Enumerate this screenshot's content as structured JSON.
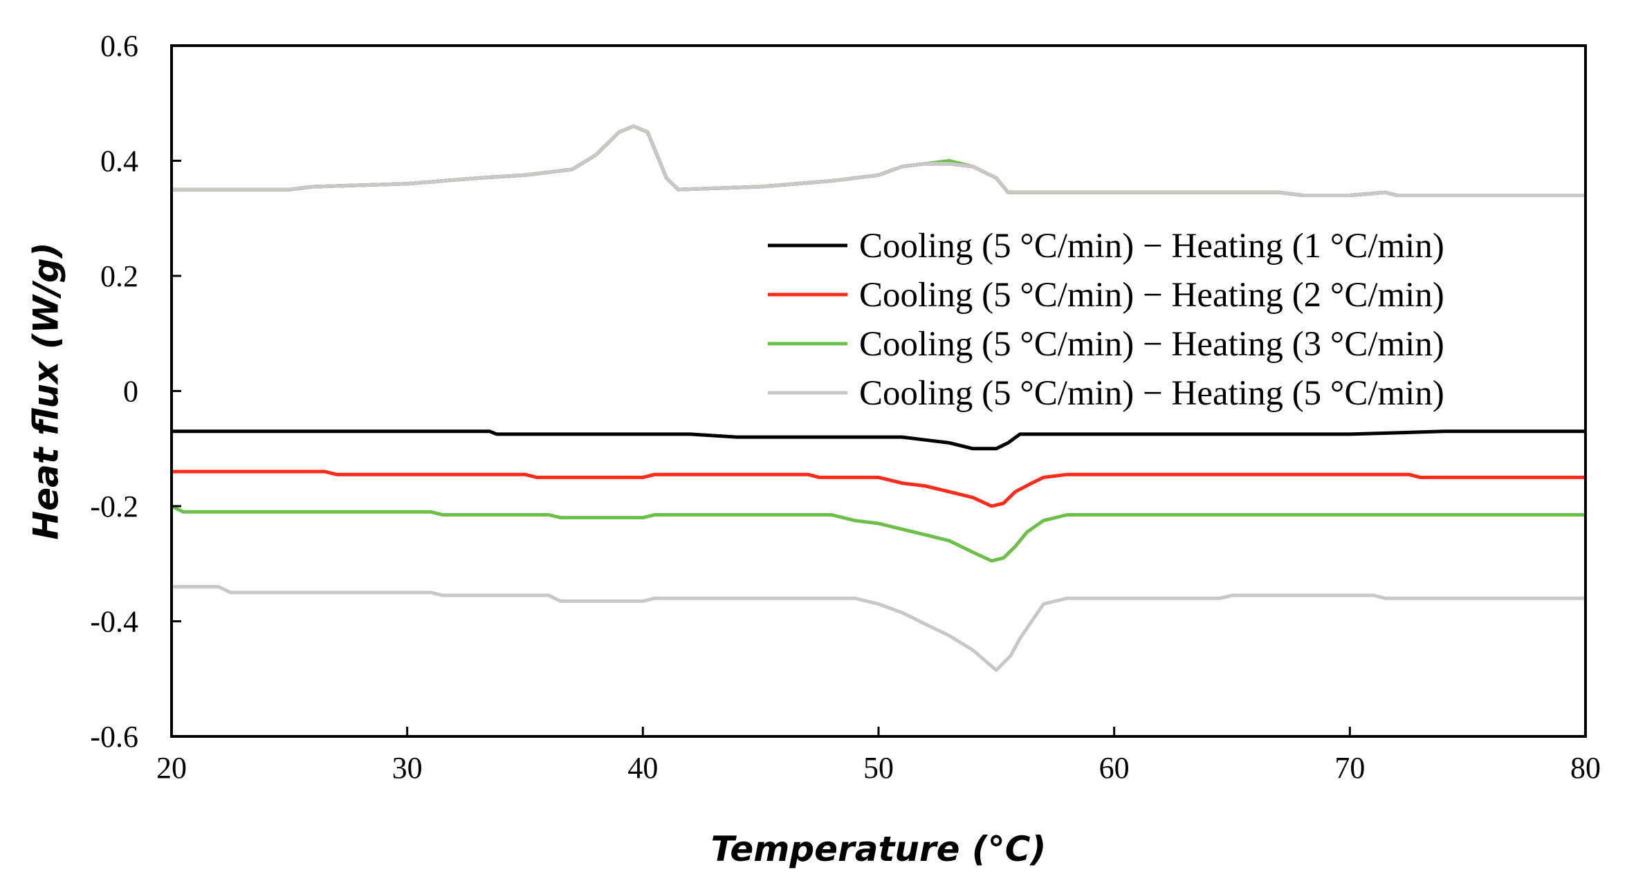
{
  "chart_data": {
    "type": "line",
    "title": "",
    "xlabel": "Temperature (°C)",
    "ylabel": "Heat flux (W/g)",
    "xlim": [
      20,
      80
    ],
    "ylim": [
      -0.6,
      0.6
    ],
    "x_ticks": [
      20,
      30,
      40,
      50,
      60,
      70,
      80
    ],
    "x_tick_labels": [
      "20",
      "30",
      "40",
      "50",
      "60",
      "70",
      "80"
    ],
    "y_ticks": [
      -0.6,
      -0.4,
      -0.2,
      0,
      0.2,
      0.4,
      0.6
    ],
    "y_tick_labels": [
      "-0.6",
      "-0.4",
      "-0.2",
      "0",
      "0.2",
      "0.4",
      "0.6"
    ],
    "grid": false,
    "legend_position": "right",
    "series": [
      {
        "name": "Cooling (5 °C/min) − Heating (1 °C/min)",
        "color": "#000000",
        "cooling": [
          [
            20,
            0.35
          ],
          [
            25,
            0.35
          ],
          [
            26,
            0.355
          ],
          [
            30,
            0.36
          ],
          [
            33,
            0.37
          ],
          [
            35,
            0.375
          ],
          [
            37,
            0.385
          ],
          [
            38,
            0.41
          ],
          [
            39,
            0.45
          ],
          [
            39.6,
            0.46
          ],
          [
            40.2,
            0.45
          ],
          [
            40.6,
            0.41
          ],
          [
            41,
            0.37
          ],
          [
            41.5,
            0.35
          ],
          [
            45,
            0.355
          ],
          [
            48,
            0.365
          ],
          [
            50,
            0.375
          ],
          [
            51,
            0.39
          ],
          [
            52,
            0.395
          ],
          [
            53,
            0.395
          ],
          [
            54,
            0.39
          ],
          [
            55,
            0.37
          ],
          [
            55.5,
            0.345
          ],
          [
            60,
            0.345
          ],
          [
            67,
            0.345
          ],
          [
            68,
            0.34
          ],
          [
            70,
            0.34
          ],
          [
            71.5,
            0.345
          ],
          [
            72,
            0.34
          ],
          [
            80,
            0.34
          ]
        ],
        "heating": [
          [
            20,
            -0.07
          ],
          [
            33.5,
            -0.07
          ],
          [
            33.8,
            -0.075
          ],
          [
            42,
            -0.075
          ],
          [
            44,
            -0.08
          ],
          [
            51,
            -0.08
          ],
          [
            52,
            -0.085
          ],
          [
            53,
            -0.09
          ],
          [
            54,
            -0.1
          ],
          [
            55,
            -0.1
          ],
          [
            55.5,
            -0.09
          ],
          [
            56,
            -0.075
          ],
          [
            70,
            -0.075
          ],
          [
            74,
            -0.07
          ],
          [
            80,
            -0.07
          ]
        ]
      },
      {
        "name": "Cooling (5 °C/min) − Heating (2 °C/min)",
        "color": "#ff2a1a",
        "cooling": [
          [
            20,
            0.35
          ],
          [
            25,
            0.35
          ],
          [
            26,
            0.355
          ],
          [
            30,
            0.36
          ],
          [
            33,
            0.37
          ],
          [
            35,
            0.375
          ],
          [
            37,
            0.385
          ],
          [
            38,
            0.41
          ],
          [
            39,
            0.45
          ],
          [
            39.6,
            0.46
          ],
          [
            40.2,
            0.45
          ],
          [
            40.6,
            0.41
          ],
          [
            41,
            0.37
          ],
          [
            41.5,
            0.35
          ],
          [
            45,
            0.355
          ],
          [
            48,
            0.365
          ],
          [
            50,
            0.375
          ],
          [
            51,
            0.39
          ],
          [
            52,
            0.395
          ],
          [
            53,
            0.395
          ],
          [
            54,
            0.39
          ],
          [
            55,
            0.37
          ],
          [
            55.5,
            0.345
          ],
          [
            60,
            0.345
          ],
          [
            67,
            0.345
          ],
          [
            68,
            0.34
          ],
          [
            70,
            0.34
          ],
          [
            71.5,
            0.345
          ],
          [
            72,
            0.34
          ],
          [
            80,
            0.34
          ]
        ],
        "heating": [
          [
            20,
            -0.14
          ],
          [
            26.5,
            -0.14
          ],
          [
            27,
            -0.145
          ],
          [
            35,
            -0.145
          ],
          [
            35.5,
            -0.15
          ],
          [
            40,
            -0.15
          ],
          [
            40.5,
            -0.145
          ],
          [
            47,
            -0.145
          ],
          [
            47.5,
            -0.15
          ],
          [
            50,
            -0.15
          ],
          [
            51,
            -0.16
          ],
          [
            52,
            -0.165
          ],
          [
            53,
            -0.175
          ],
          [
            54,
            -0.185
          ],
          [
            54.8,
            -0.2
          ],
          [
            55.3,
            -0.195
          ],
          [
            55.8,
            -0.175
          ],
          [
            56.5,
            -0.16
          ],
          [
            57,
            -0.15
          ],
          [
            58,
            -0.145
          ],
          [
            72.5,
            -0.145
          ],
          [
            73,
            -0.15
          ],
          [
            80,
            -0.15
          ]
        ]
      },
      {
        "name": "Cooling (5 °C/min) − Heating (3 °C/min)",
        "color": "#6cc04a",
        "cooling": [
          [
            20,
            0.35
          ],
          [
            25,
            0.35
          ],
          [
            26,
            0.355
          ],
          [
            30,
            0.36
          ],
          [
            33,
            0.37
          ],
          [
            35,
            0.375
          ],
          [
            37,
            0.385
          ],
          [
            38,
            0.41
          ],
          [
            39,
            0.45
          ],
          [
            39.6,
            0.46
          ],
          [
            40.2,
            0.45
          ],
          [
            40.6,
            0.41
          ],
          [
            41,
            0.37
          ],
          [
            41.5,
            0.35
          ],
          [
            45,
            0.355
          ],
          [
            48,
            0.365
          ],
          [
            50,
            0.375
          ],
          [
            51,
            0.39
          ],
          [
            52,
            0.395
          ],
          [
            53,
            0.4
          ],
          [
            54,
            0.39
          ],
          [
            55,
            0.37
          ],
          [
            55.5,
            0.345
          ],
          [
            60,
            0.345
          ],
          [
            67,
            0.345
          ],
          [
            68,
            0.34
          ],
          [
            70,
            0.34
          ],
          [
            71.5,
            0.345
          ],
          [
            72,
            0.34
          ],
          [
            80,
            0.34
          ]
        ],
        "heating": [
          [
            20,
            -0.2
          ],
          [
            20.5,
            -0.21
          ],
          [
            31,
            -0.21
          ],
          [
            31.5,
            -0.215
          ],
          [
            36,
            -0.215
          ],
          [
            36.5,
            -0.22
          ],
          [
            40,
            -0.22
          ],
          [
            40.5,
            -0.215
          ],
          [
            48,
            -0.215
          ],
          [
            49,
            -0.225
          ],
          [
            50,
            -0.23
          ],
          [
            51,
            -0.24
          ],
          [
            52,
            -0.25
          ],
          [
            53,
            -0.26
          ],
          [
            54,
            -0.28
          ],
          [
            54.8,
            -0.295
          ],
          [
            55.3,
            -0.29
          ],
          [
            55.8,
            -0.27
          ],
          [
            56.3,
            -0.245
          ],
          [
            57,
            -0.225
          ],
          [
            58,
            -0.215
          ],
          [
            80,
            -0.215
          ]
        ]
      },
      {
        "name": "Cooling (5 °C/min) − Heating (5 °C/min)",
        "color": "#c8c8c8",
        "cooling": [
          [
            20,
            0.35
          ],
          [
            25,
            0.35
          ],
          [
            26,
            0.355
          ],
          [
            30,
            0.36
          ],
          [
            33,
            0.37
          ],
          [
            35,
            0.375
          ],
          [
            37,
            0.385
          ],
          [
            38,
            0.41
          ],
          [
            39,
            0.45
          ],
          [
            39.6,
            0.46
          ],
          [
            40.2,
            0.45
          ],
          [
            40.6,
            0.41
          ],
          [
            41,
            0.37
          ],
          [
            41.5,
            0.35
          ],
          [
            45,
            0.355
          ],
          [
            48,
            0.365
          ],
          [
            50,
            0.375
          ],
          [
            51,
            0.39
          ],
          [
            52,
            0.395
          ],
          [
            53,
            0.395
          ],
          [
            54,
            0.39
          ],
          [
            55,
            0.37
          ],
          [
            55.5,
            0.345
          ],
          [
            60,
            0.345
          ],
          [
            67,
            0.345
          ],
          [
            68,
            0.34
          ],
          [
            70,
            0.34
          ],
          [
            71.5,
            0.345
          ],
          [
            72,
            0.34
          ],
          [
            80,
            0.34
          ]
        ],
        "heating": [
          [
            20,
            -0.34
          ],
          [
            22,
            -0.34
          ],
          [
            22.5,
            -0.35
          ],
          [
            31,
            -0.35
          ],
          [
            31.5,
            -0.355
          ],
          [
            36,
            -0.355
          ],
          [
            36.5,
            -0.365
          ],
          [
            40,
            -0.365
          ],
          [
            40.5,
            -0.36
          ],
          [
            49,
            -0.36
          ],
          [
            50,
            -0.37
          ],
          [
            51,
            -0.385
          ],
          [
            52,
            -0.405
          ],
          [
            53,
            -0.425
          ],
          [
            54,
            -0.45
          ],
          [
            55,
            -0.485
          ],
          [
            55.6,
            -0.46
          ],
          [
            56,
            -0.43
          ],
          [
            56.5,
            -0.4
          ],
          [
            57,
            -0.37
          ],
          [
            58,
            -0.36
          ],
          [
            64.5,
            -0.36
          ],
          [
            65,
            -0.355
          ],
          [
            71,
            -0.355
          ],
          [
            71.5,
            -0.36
          ],
          [
            80,
            -0.36
          ]
        ]
      }
    ]
  }
}
